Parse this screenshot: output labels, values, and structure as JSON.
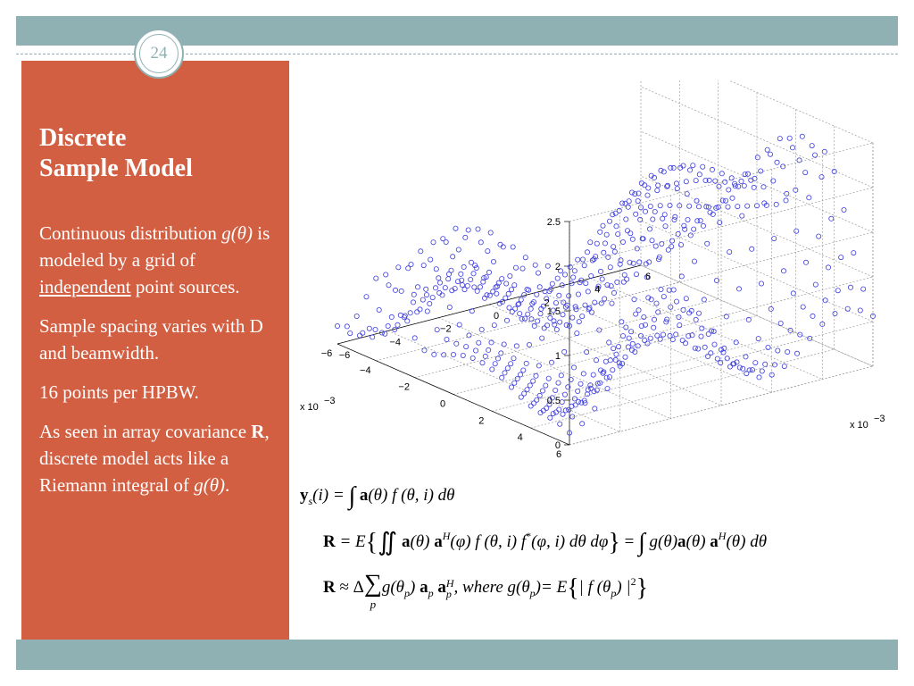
{
  "slide": {
    "page_number": "24",
    "title_line1": "Discrete",
    "title_line2": "Sample Model",
    "bullets": {
      "p1_a": "Continuous distribution ",
      "p1_func": "g(θ)",
      "p1_b": " is modeled by a grid of ",
      "p1_underline": "independent",
      "p1_c": " point sources.",
      "p2": "Sample spacing varies with D and beamwidth.",
      "p3": "16 points per HPBW.",
      "p4_a": "As seen in array covariance ",
      "p4_bold": "R",
      "p4_b": ", discrete model acts like a Riemann integral of ",
      "p4_func": "g(θ)",
      "p4_c": "."
    }
  },
  "equations": {
    "eq1": {
      "y": "y",
      "y_sub": "s",
      "lhs_arg": "(i) = ",
      "integral": "∫",
      "a": "a",
      "mid": "(θ) ",
      "rest": "f (θ, i) dθ"
    },
    "eq2": {
      "R": "R",
      "p1": " = E",
      "brace_open": "{",
      "integral": "∬",
      "a1": "a",
      "t1": "(θ)",
      "a2": "a",
      "H1": "H",
      "t2": "(φ) f (θ, i) f",
      "star": "*",
      "t3": "(φ, i) dθ dφ",
      "brace_close": "}",
      "t4": " = ",
      "integral2": "∫",
      "t5": " g(θ)",
      "a3": "a",
      "t6": "(θ)",
      "a4": "a",
      "H2": "H",
      "t7": "(θ) dθ"
    },
    "eq3": {
      "R": "R",
      "p1": " ≈ Δ",
      "sum": "∑",
      "sum_sub": "p",
      "t1": "g(θ",
      "p_sub1": "p",
      "t2": ") ",
      "a1": "a",
      "p_sub2": "p",
      "a2": " a",
      "H": "H",
      "p_sub3": "p",
      "t3": ",    where g(θ",
      "p_sub4": "p",
      "t4": ")= E",
      "brace_open": "{",
      "t5": "| f (θ",
      "p_sub5": "p",
      "t6": ") |",
      "two": "2",
      "brace_close": "}"
    }
  },
  "chart_data": {
    "type": "scatter",
    "projection": "3d",
    "marker": "circle",
    "marker_color": "#3b3bdf",
    "z_ticks": [
      "0",
      "0.5",
      "1",
      "1.5",
      "2",
      "2.5"
    ],
    "y_ticks": [
      "6",
      "4",
      "2",
      "0",
      "−2",
      "−4",
      "−6"
    ],
    "x_ticks": [
      "−6",
      "−4",
      "−2",
      "0",
      "2",
      "4",
      "6"
    ],
    "y_multiplier": "x 10",
    "y_multiplier_exp": "−3",
    "x_multiplier": "x 10",
    "x_multiplier_exp": "−3",
    "x_range": [
      -6,
      6
    ],
    "y_range": [
      -6,
      6
    ],
    "z_range": [
      0,
      2.5
    ],
    "grid": true,
    "grid_size": 25
  }
}
